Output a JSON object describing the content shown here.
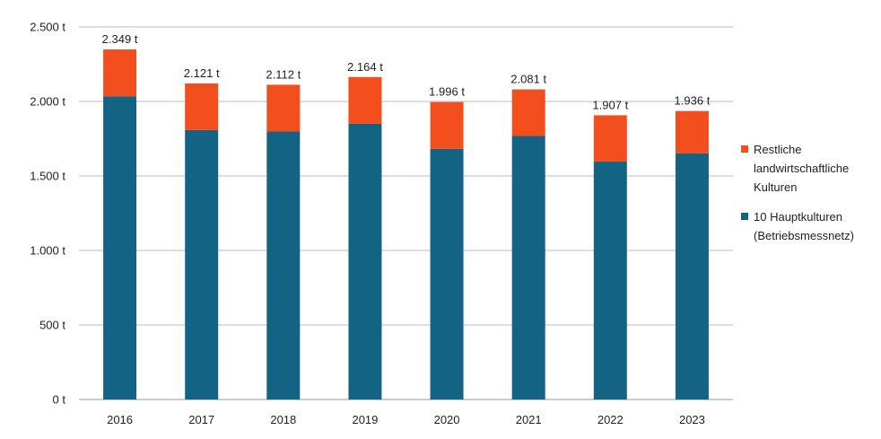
{
  "chart_data": {
    "type": "bar",
    "stacked": true,
    "categories": [
      "2016",
      "2017",
      "2018",
      "2019",
      "2020",
      "2021",
      "2022",
      "2023"
    ],
    "series": [
      {
        "name": "10 Hauptkulturen (Betriebsmessnetz)",
        "color": "#136384",
        "values": [
          2035,
          1808,
          1798,
          1850,
          1682,
          1768,
          1596,
          1651
        ]
      },
      {
        "name": "Restliche landwirtschaftliche Kulturen",
        "color": "#f24e1e",
        "values": [
          314,
          313,
          314,
          314,
          314,
          313,
          311,
          285
        ]
      }
    ],
    "totals": [
      2349,
      2121,
      2112,
      2164,
      1996,
      2081,
      1907,
      1936
    ],
    "total_labels": [
      "2.349 t",
      "2.121 t",
      "2.112 t",
      "2.164 t",
      "1.996 t",
      "2.081 t",
      "1.907 t",
      "1.936 t"
    ],
    "y_ticks": [
      0,
      500,
      1000,
      1500,
      2000,
      2500
    ],
    "y_tick_labels": [
      "0 t",
      "500 t",
      "1.000 t",
      "1.500 t",
      "2.000 t",
      "2.500 t"
    ],
    "ylim": [
      0,
      2500
    ],
    "grid": true,
    "legend_position": "right",
    "legend": [
      {
        "label": "Restliche\nlandwirtschaftliche\nKulturen",
        "color": "#f24e1e"
      },
      {
        "label": "10 Hauptkulturen\n(Betriebsmessnetz)",
        "color": "#136384"
      }
    ]
  }
}
